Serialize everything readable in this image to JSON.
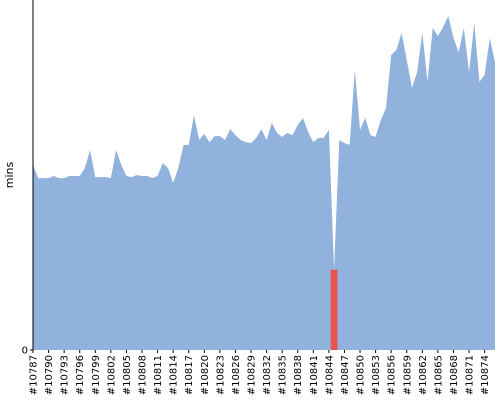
{
  "chart_data": {
    "type": "area",
    "ylabel": "mins",
    "categories": [
      "#10787",
      null,
      null,
      "#10790",
      null,
      null,
      "#10793",
      null,
      null,
      "#10796",
      null,
      null,
      "#10799",
      null,
      null,
      "#10802",
      null,
      null,
      "#10805",
      null,
      null,
      "#10808",
      null,
      null,
      "#10811",
      null,
      null,
      "#10814",
      null,
      null,
      "#10817",
      null,
      null,
      "#10820",
      null,
      null,
      "#10823",
      null,
      null,
      "#10826",
      null,
      null,
      "#10829",
      null,
      null,
      "#10832",
      null,
      null,
      "#10835",
      null,
      null,
      "#10838",
      null,
      null,
      "#10841",
      null,
      null,
      "#10844",
      null,
      null,
      "#10847",
      null,
      null,
      "#10850",
      null,
      null,
      "#10853",
      null,
      null,
      "#10856",
      null,
      null,
      "#10859",
      null,
      null,
      "#10862",
      null,
      null,
      "#10865",
      null,
      null,
      "#10868",
      null,
      null,
      "#10871",
      null,
      null,
      "#10874",
      null,
      null
    ],
    "series": [
      {
        "color": "#91b2dc",
        "values": [
          52.9,
          49.1,
          49.1,
          49.1,
          49.7,
          49.1,
          49.1,
          49.7,
          49.7,
          49.7,
          52,
          57.1,
          49.4,
          49.4,
          49.4,
          49.1,
          57.1,
          52.9,
          49.7,
          49.4,
          50,
          49.7,
          49.7,
          49.1,
          49.7,
          53.4,
          52,
          47.7,
          52,
          58.6,
          58.6,
          67.1,
          60,
          61.7,
          59.4,
          61.1,
          61.1,
          60,
          63.1,
          61.4,
          60,
          59.4,
          59.1,
          60.6,
          63.1,
          60,
          64.9,
          62,
          60.9,
          62,
          61.4,
          64.3,
          66.3,
          62.3,
          59.4,
          60.6,
          60.6,
          62.9,
          22.9,
          60,
          59.1,
          58.6,
          80,
          62.9,
          66.3,
          61.4,
          60.9,
          65.7,
          69.1,
          84.3,
          85.7,
          90.6,
          82.9,
          74.9,
          79.4,
          90.6,
          76.6,
          92,
          89.7,
          92.3,
          95.4,
          89.1,
          85.1,
          92,
          79.4,
          93.4,
          76.6,
          78.6,
          89.1,
          82.3
        ]
      },
      {
        "type": "bar",
        "color": "#e8524f",
        "values": [
          null,
          null,
          null,
          null,
          null,
          null,
          null,
          null,
          null,
          null,
          null,
          null,
          null,
          null,
          null,
          null,
          null,
          null,
          null,
          null,
          null,
          null,
          null,
          null,
          null,
          null,
          null,
          null,
          null,
          null,
          null,
          null,
          null,
          null,
          null,
          null,
          null,
          null,
          null,
          null,
          null,
          null,
          null,
          null,
          null,
          null,
          null,
          null,
          null,
          null,
          null,
          null,
          null,
          null,
          null,
          null,
          null,
          null,
          22.9,
          null,
          null,
          null,
          null,
          null,
          null,
          null,
          null,
          null,
          null,
          null,
          null,
          null,
          null,
          null,
          null,
          null,
          null,
          null,
          null,
          null,
          null,
          null,
          null,
          null,
          null,
          null,
          null,
          null,
          null,
          null
        ]
      }
    ],
    "ylim": [
      0,
      100
    ],
    "yticks": [
      0
    ]
  }
}
